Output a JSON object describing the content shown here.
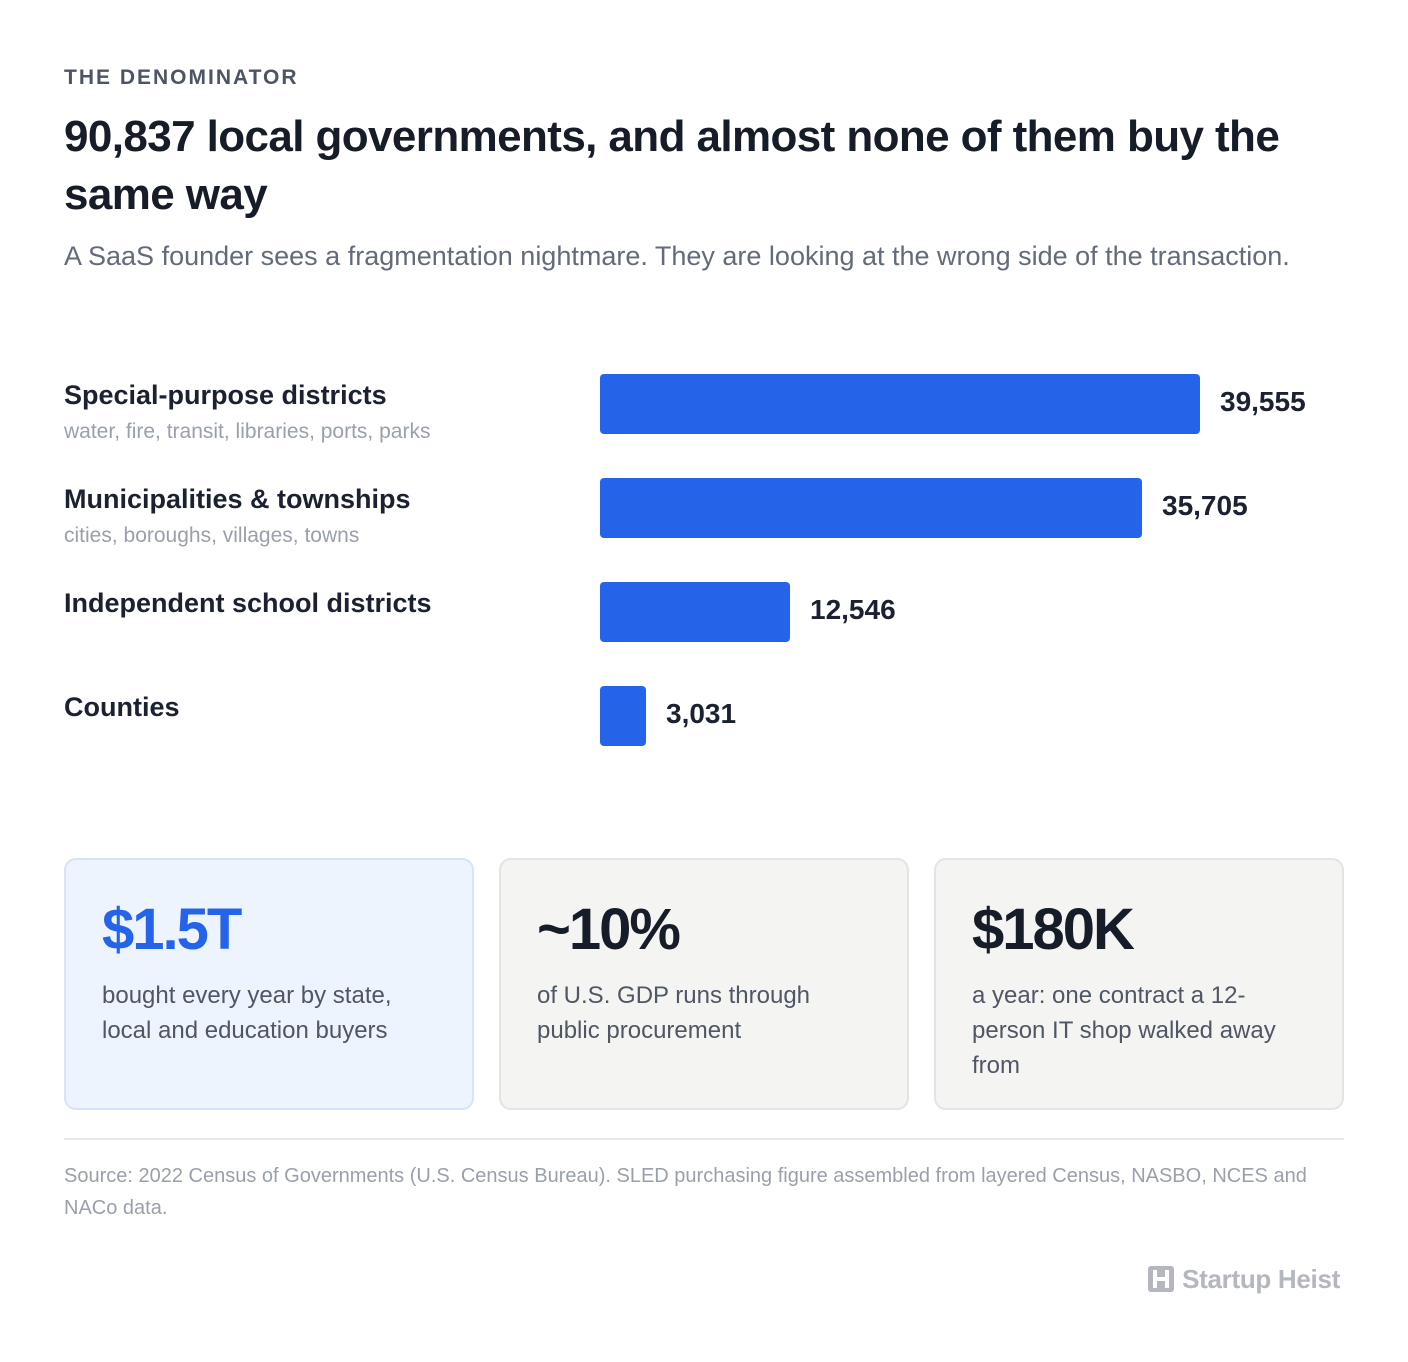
{
  "header": {
    "eyebrow": "THE DENOMINATOR",
    "title": "90,837 local governments, and almost none of them buy the same way",
    "subtitle": "A SaaS founder sees a fragmentation nightmare. They are looking at the wrong side of the transaction."
  },
  "chart_data": {
    "type": "bar",
    "orientation": "horizontal",
    "categories": [
      "Special-purpose districts",
      "Municipalities & townships",
      "Independent school districts",
      "Counties"
    ],
    "category_notes": [
      "water, fire, transit, libraries, ports, parks",
      "cities, boroughs, villages, towns",
      "",
      ""
    ],
    "values": [
      39555,
      35705,
      12546,
      3031
    ],
    "value_labels": [
      "39,555",
      "35,705",
      "12,546",
      "3,031"
    ],
    "xlim": [
      0,
      39555
    ],
    "grid": false,
    "legend": "none",
    "bar_color": "#2563e8"
  },
  "stats": [
    {
      "value": "$1.5T",
      "text": "bought every year by state, local and education buyers",
      "highlight": true
    },
    {
      "value": "~10%",
      "text": "of U.S. GDP runs through public procurement",
      "highlight": false
    },
    {
      "value": "$180K",
      "text": "a year: one contract a 12-person IT shop walked away from",
      "highlight": false
    }
  ],
  "footer": {
    "source": "Source: 2022 Census of Governments (U.S. Census Bureau). SLED purchasing figure assembled from layered Census, NASBO, NCES and NACo data.",
    "brand": "Startup Heist",
    "brand_icon": "heist-logo-icon"
  },
  "colors": {
    "accent": "#2563e8",
    "highlight_card_bg": "#eef4fe",
    "card_bg": "#f4f4f3"
  }
}
